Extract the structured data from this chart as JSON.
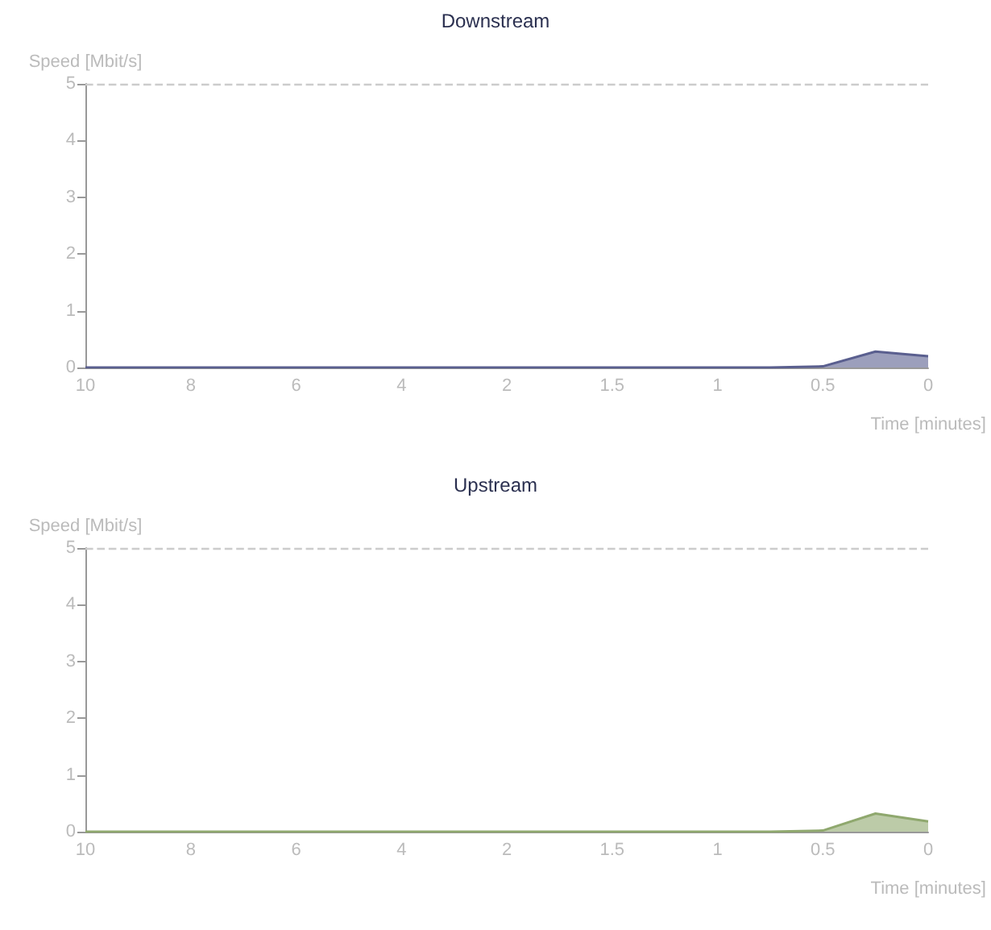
{
  "chart_data": [
    {
      "type": "area",
      "title": "Downstream",
      "xlabel": "Time [minutes]",
      "ylabel": "Speed [Mbit/s]",
      "categories": [
        "10",
        null,
        "8",
        null,
        "6",
        null,
        "4",
        null,
        "2",
        null,
        "1.5",
        null,
        "1",
        null,
        "0.5",
        null,
        "0"
      ],
      "series": [
        {
          "color": "#5a5f8f",
          "values": [
            0,
            0,
            0,
            0,
            0,
            0,
            0,
            0,
            0,
            0,
            0,
            0,
            0,
            0,
            0.02,
            0.28,
            0.2
          ]
        }
      ],
      "ylim": [
        0,
        5
      ],
      "yticks": [
        0,
        1,
        2,
        3,
        4,
        5
      ],
      "grid": false,
      "marker": "none",
      "ref_lines": [
        {
          "axis": "y",
          "value": 5,
          "color": "#cccccc",
          "line_style": "dashed"
        }
      ]
    },
    {
      "type": "area",
      "title": "Upstream",
      "xlabel": "Time [minutes]",
      "ylabel": "Speed [Mbit/s]",
      "categories": [
        "10",
        null,
        "8",
        null,
        "6",
        null,
        "4",
        null,
        "2",
        null,
        "1.5",
        null,
        "1",
        null,
        "0.5",
        null,
        "0"
      ],
      "series": [
        {
          "color": "#8fa86e",
          "values": [
            0,
            0,
            0,
            0,
            0,
            0,
            0,
            0,
            0,
            0,
            0,
            0,
            0,
            0,
            0.02,
            0.32,
            0.18
          ]
        }
      ],
      "ylim": [
        0,
        5
      ],
      "yticks": [
        0,
        1,
        2,
        3,
        4,
        5
      ],
      "grid": false,
      "marker": "none",
      "ref_lines": [
        {
          "axis": "y",
          "value": 5,
          "color": "#cccccc",
          "line_style": "dashed"
        }
      ]
    }
  ]
}
